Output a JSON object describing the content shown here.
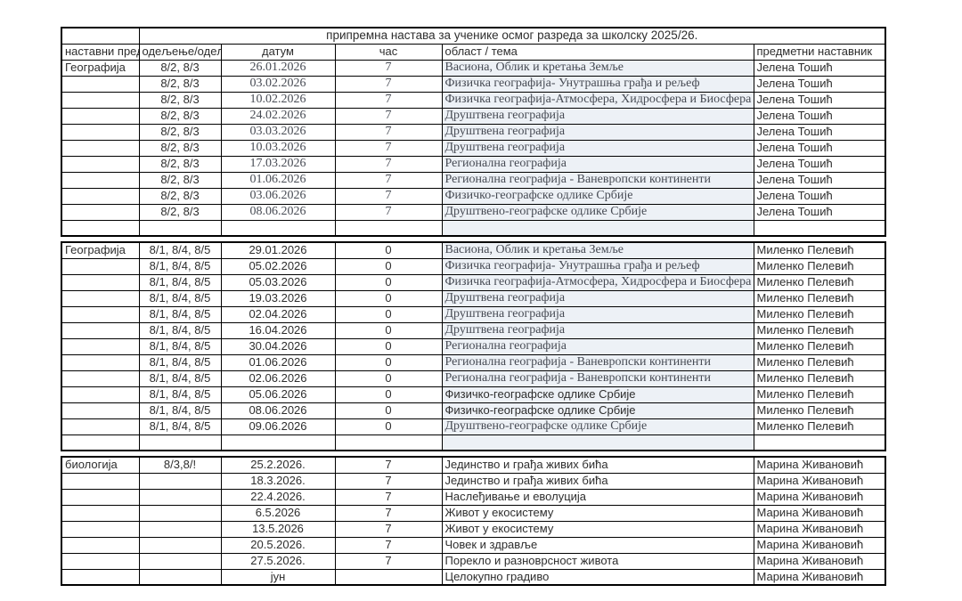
{
  "colors": {
    "topic_tint": "#edf1f6",
    "border": "#000000",
    "text_sans": "#2e2e2e",
    "text_serif": "#474b54"
  },
  "title": "припремна настава за ученике осмог разреда за школску 2025/26.",
  "headers": {
    "subject": "наставни предмет",
    "class_group": "одељење/одељења",
    "date": "датум",
    "period": "час",
    "topic": "област / тема",
    "teacher": "предметни наставник"
  },
  "blocks": [
    {
      "subject": "Географија",
      "teacher": "Јелена Тошић",
      "topic_tinted": true,
      "trailing_empty_row": true,
      "fonts": {
        "date": "serif",
        "period": "serif",
        "topic": "serif"
      },
      "rows": [
        {
          "subject": "Географија",
          "class_group": "8/2, 8/3",
          "date": "26.01.2026",
          "period": "7",
          "topic": "Васиона, Облик и кретања Земље"
        },
        {
          "class_group": "8/2, 8/3",
          "date": "03.02.2026",
          "period": "7",
          "topic": "Физичка географија- Унутрашња грађа и рељеф"
        },
        {
          "class_group": "8/2, 8/3",
          "date": "10.02.2026",
          "period": "7",
          "topic": "Физичка географија-Атмосфера, Хидросфера и Биосфера"
        },
        {
          "class_group": "8/2, 8/3",
          "date": "24.02.2026",
          "period": "7",
          "topic": "Друштвена географија"
        },
        {
          "class_group": "8/2, 8/3",
          "date": "03.03.2026",
          "period": "7",
          "topic": "Друштвена географија"
        },
        {
          "class_group": "8/2, 8/3",
          "date": "10.03.2026",
          "period": "7",
          "topic": "Друштвена географија"
        },
        {
          "class_group": "8/2, 8/3",
          "date": "17.03.2026",
          "period": "7",
          "topic": "Регионална географија"
        },
        {
          "class_group": "8/2, 8/3",
          "date": "01.06.2026",
          "period": "7",
          "topic": "Регионална географија - Ваневропски континенти"
        },
        {
          "class_group": "8/2, 8/3",
          "date": "03.06.2026",
          "period": "7",
          "topic": "Физичко-географске одлике Србије"
        },
        {
          "class_group": "8/2, 8/3",
          "date": "08.06.2026",
          "period": "7",
          "topic": "Друштвено-географске одлике Србије"
        }
      ]
    },
    {
      "subject": "Географија",
      "teacher": "Миленко Пелевић",
      "topic_tinted": true,
      "trailing_empty_row": true,
      "fonts": {
        "topic": "serif"
      },
      "rows": [
        {
          "subject": "Географија",
          "class_group": "8/1, 8/4, 8/5",
          "date": "29.01.2026",
          "period": "0",
          "topic": "Васиона, Облик и кретања Земље"
        },
        {
          "class_group": "8/1, 8/4, 8/5",
          "date": "05.02.2026",
          "period": "0",
          "topic": "Физичка географија- Унутрашња грађа и рељеф"
        },
        {
          "class_group": "8/1, 8/4, 8/5",
          "date": "05.03.2026",
          "period": "0",
          "topic": "Физичка географија-Атмосфера, Хидросфера и Биосфера"
        },
        {
          "class_group": "8/1, 8/4, 8/5",
          "date": "19.03.2026",
          "period": "0",
          "topic": "Друштвена географија"
        },
        {
          "class_group": "8/1, 8/4, 8/5",
          "date": "02.04.2026",
          "period": "0",
          "topic": "Друштвена географија"
        },
        {
          "class_group": "8/1, 8/4, 8/5",
          "date": "16.04.2026",
          "period": "0",
          "topic": "Друштвена географија"
        },
        {
          "class_group": "8/1, 8/4, 8/5",
          "date": "30.04.2026",
          "period": "0",
          "topic": "Регионална географија"
        },
        {
          "class_group": "8/1, 8/4, 8/5",
          "date": "01.06.2026",
          "period": "0",
          "topic": "Регионална географија - Ваневропски континенти"
        },
        {
          "class_group": "8/1, 8/4, 8/5",
          "date": "02.06.2026",
          "period": "0",
          "topic": "Регионална географија - Ваневропски континенти"
        },
        {
          "class_group": "8/1, 8/4, 8/5",
          "date": "05.06.2026",
          "period": "0",
          "topic": "Физичко-географске одлике Србије",
          "fonts": {
            "topic": "sans"
          }
        },
        {
          "class_group": "8/1, 8/4, 8/5",
          "date": "08.06.2026",
          "period": "0",
          "topic": "Физичко-географске одлике Србије",
          "fonts": {
            "topic": "sans"
          }
        },
        {
          "class_group": "8/1, 8/4, 8/5",
          "date": "09.06.2026",
          "period": "0",
          "topic": "Друштвено-географске одлике Србије"
        }
      ]
    },
    {
      "subject": "биологија",
      "teacher": "Марина Живановић",
      "topic_tinted": false,
      "trailing_empty_row": false,
      "fonts": {},
      "rows": [
        {
          "subject": "биологија",
          "class_group": "8/3,8/!",
          "date": "25.2.2026.",
          "period": "7",
          "topic": "Јединство и грађа живих бића"
        },
        {
          "date": "18.3.2026.",
          "period": "7",
          "topic": "Јединство и грађа живих бића"
        },
        {
          "date": "22.4.2026.",
          "period": "7",
          "topic": "Наслеђивање и еволуција"
        },
        {
          "date": "6.5.2026",
          "period": "7",
          "topic": "Живот у екосистему"
        },
        {
          "date": "13.5.2026",
          "period": "7",
          "topic": "Живот у екосистему"
        },
        {
          "date": "20.5.2026.",
          "period": "7",
          "topic": "Човек и здравље"
        },
        {
          "date": "27.5.2026.",
          "period": "7",
          "topic": "Порекло и разноврсност живота"
        },
        {
          "date": "јун",
          "period": "",
          "topic": "Целокупно градиво"
        }
      ]
    }
  ]
}
